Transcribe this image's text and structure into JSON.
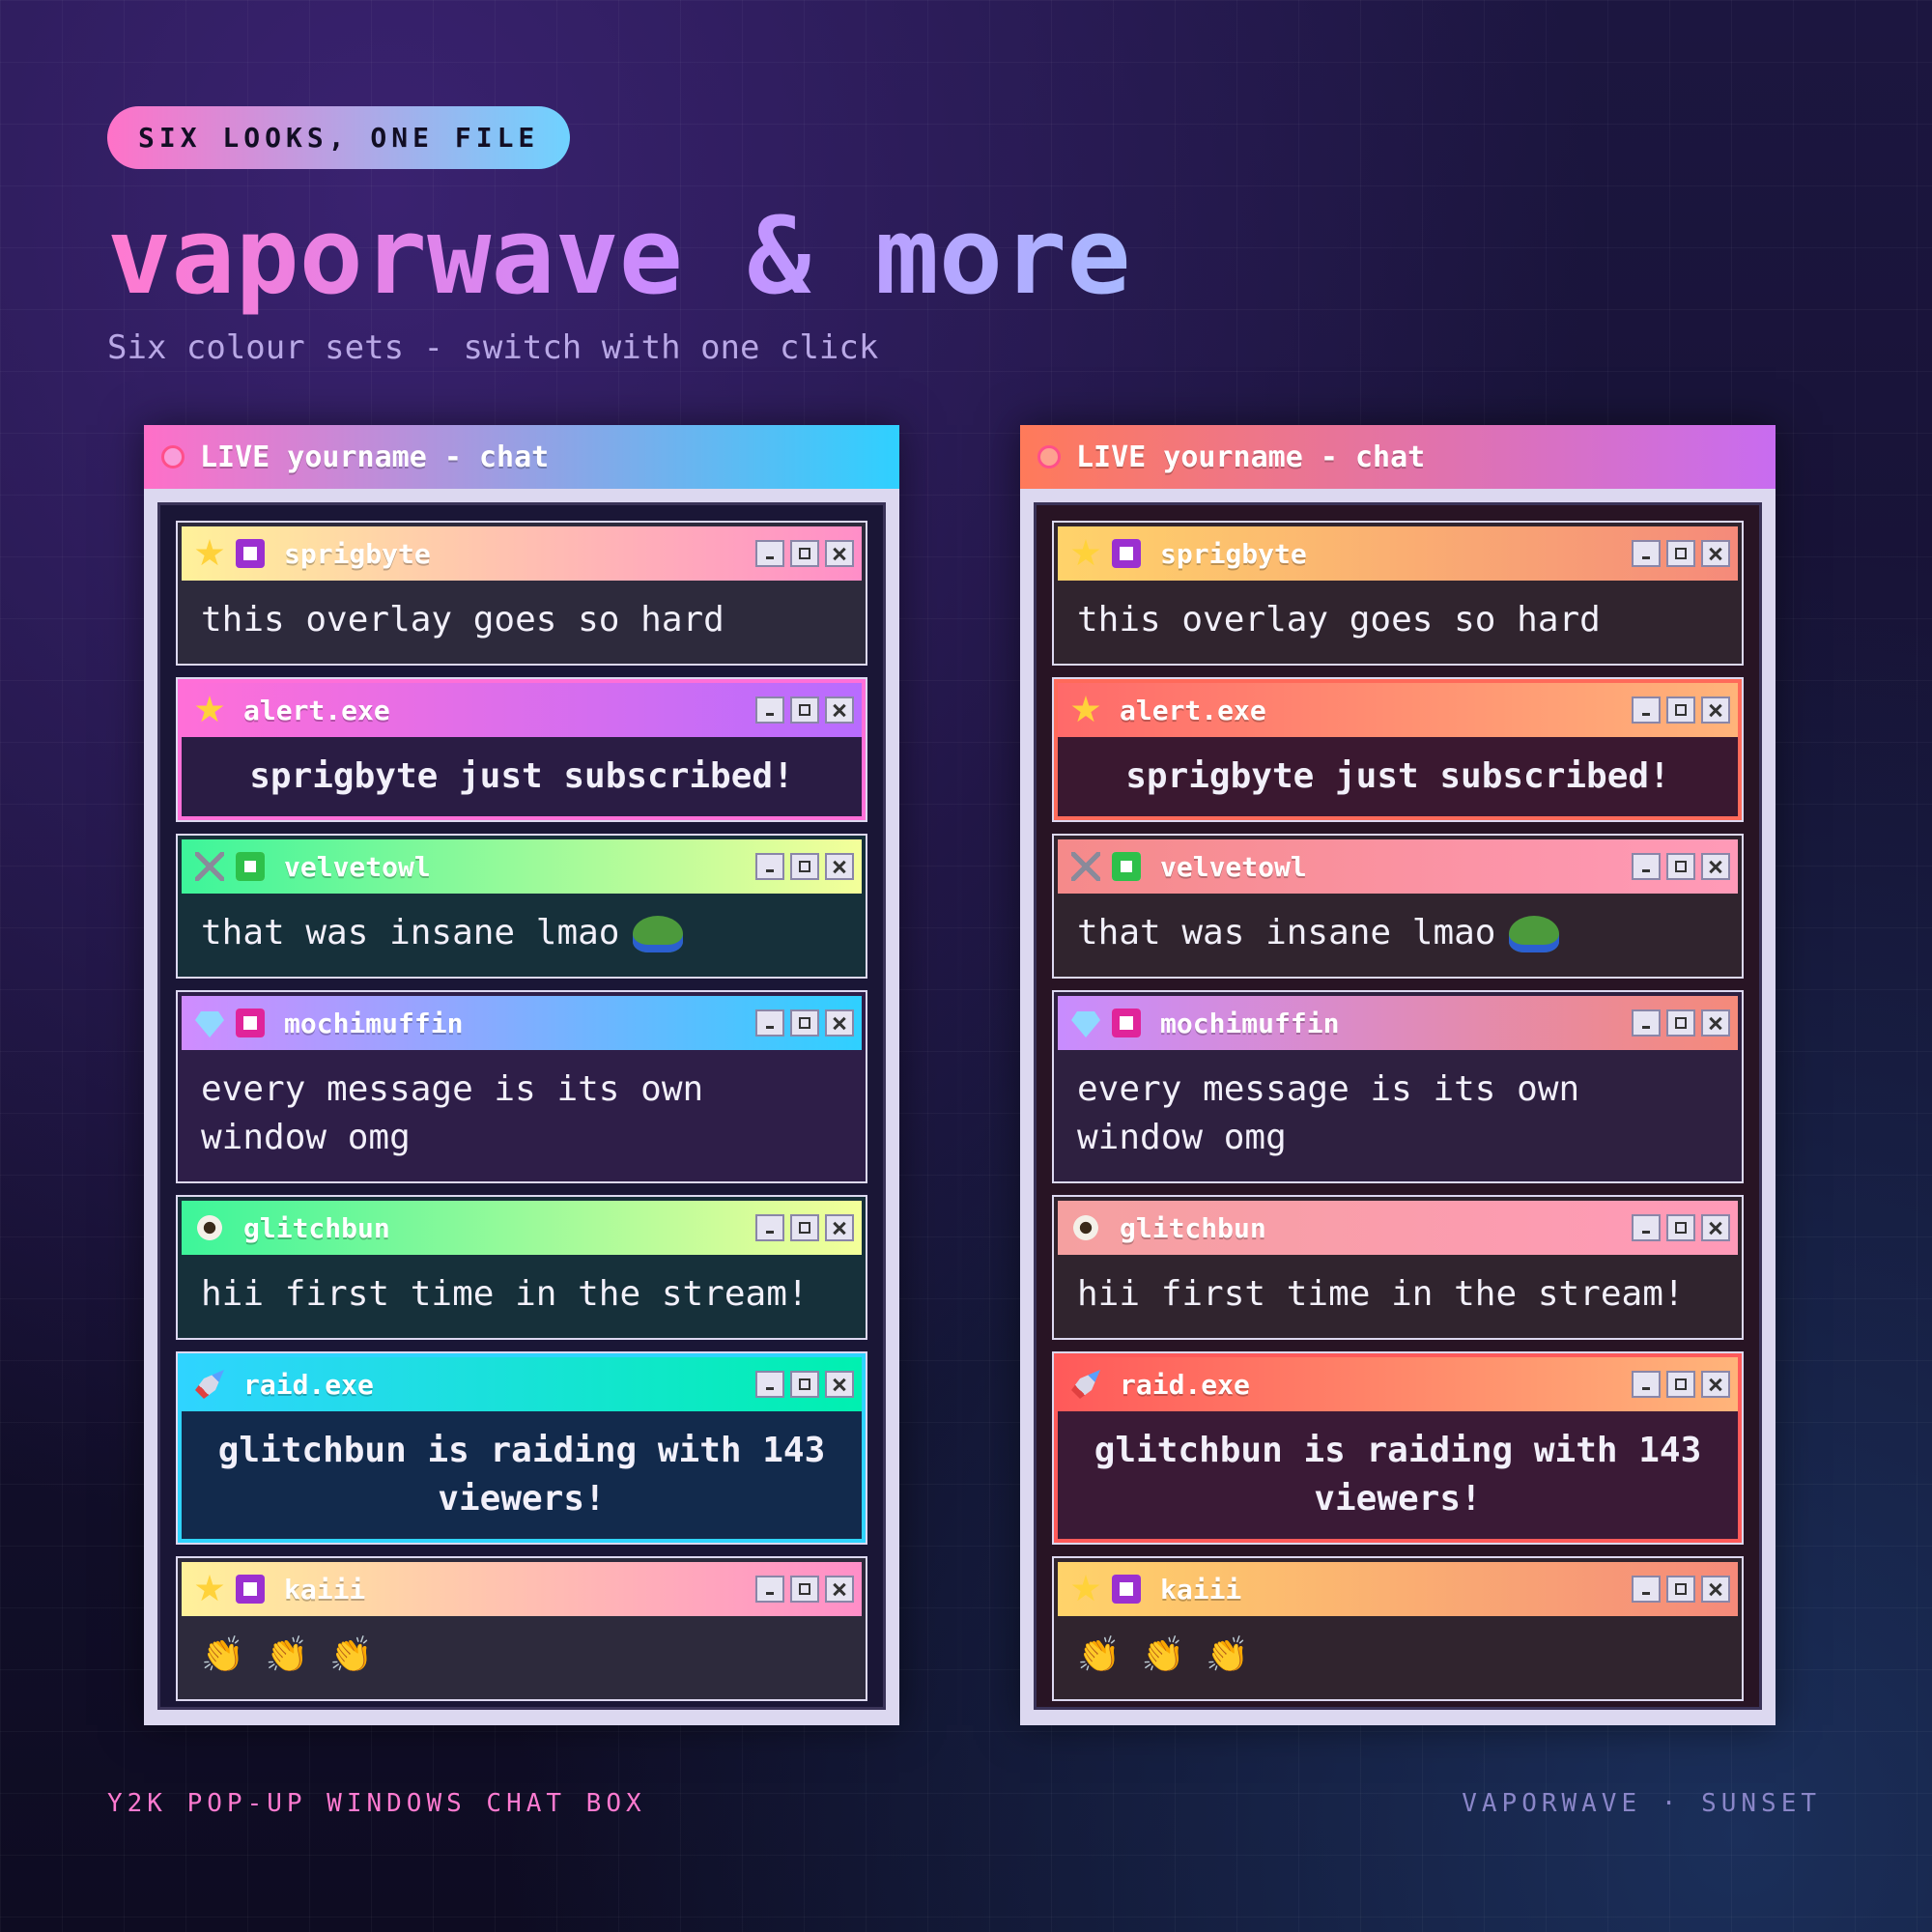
{
  "badge": "SIX LOOKS, ONE FILE",
  "title": "vaporwave & more",
  "subtitle": "Six colour sets - switch with one click",
  "chat": {
    "title": "LIVE yourname - chat",
    "messages": [
      {
        "user": "sprigbyte",
        "text": "this overlay goes so hard",
        "icons": [
          "star",
          "sub"
        ]
      },
      {
        "user": "alert.exe",
        "text": "sprigbyte just subscribed!",
        "icons": [
          "star"
        ],
        "kind": "alert"
      },
      {
        "user": "velvetowl",
        "text": "that was insane lmao",
        "icons": [
          "swords",
          "check"
        ],
        "emote": "frog"
      },
      {
        "user": "mochimuffin",
        "text": "every message is its own window omg",
        "icons": [
          "diamond",
          "heart"
        ]
      },
      {
        "user": "glitchbun",
        "text": "hii first time in the stream!",
        "icons": [
          "eye"
        ]
      },
      {
        "user": "raid.exe",
        "text": "glitchbun is raiding with 143 viewers!",
        "icons": [
          "rocket"
        ],
        "kind": "alert"
      },
      {
        "user": "kaiii",
        "text": "👏 👏 👏",
        "icons": [
          "star",
          "sub"
        ]
      }
    ]
  },
  "themes": [
    {
      "bar": [
        "#ff6fc8",
        "#2fd0ff"
      ],
      "interior": "#1a1636",
      "headers": [
        [
          "#fff19a",
          "#ff8ec8"
        ],
        [
          "#ff6fd8",
          "#b86cff"
        ],
        [
          "#3df59a",
          "#f4ff9a"
        ],
        [
          "#d08cff",
          "#2fd0ff"
        ],
        [
          "#3df59a",
          "#f4ff9a"
        ],
        [
          "#2fd4ff",
          "#00f0b0"
        ],
        [
          "#fff19a",
          "#ff8ec8"
        ]
      ],
      "bodies": [
        "#2d2a3c",
        "#2a1c44",
        "#16303a",
        "#2e1e48",
        "#16303a",
        "#122a4c",
        "#2d2a3c"
      ],
      "borders": [
        "#2d2a3c",
        "#ff6fd8",
        "#16303a",
        "#2e1e48",
        "#16303a",
        "#2fd4ff",
        "#2d2a3c"
      ]
    },
    {
      "bar": [
        "#ff7a5a",
        "#c86cf0"
      ],
      "interior": "#281424",
      "headers": [
        [
          "#ffd36a",
          "#f58a7a"
        ],
        [
          "#ff6a6a",
          "#ffb47a"
        ],
        [
          "#f58a8a",
          "#ff9ab8"
        ],
        [
          "#c88cff",
          "#f58a7a"
        ],
        [
          "#f5a0a0",
          "#ff9ab8"
        ],
        [
          "#ff5a5a",
          "#ffb47a"
        ],
        [
          "#ffd36a",
          "#f58a7a"
        ]
      ],
      "bodies": [
        "#30242e",
        "#3a1830",
        "#30242e",
        "#2e2040",
        "#30242e",
        "#3a1a36",
        "#30242e"
      ],
      "borders": [
        "#30242e",
        "#ff6a5a",
        "#30242e",
        "#2e2040",
        "#30242e",
        "#ff5a5a",
        "#30242e"
      ]
    }
  ],
  "footer": {
    "left": "Y2K POP-UP WINDOWS CHAT BOX",
    "right": "VAPORWAVE · SUNSET"
  }
}
